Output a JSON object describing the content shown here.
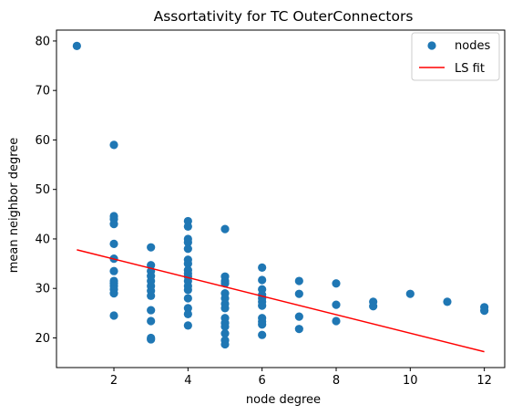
{
  "chart_data": {
    "type": "scatter",
    "title": "Assortativity for TC OuterConnectors",
    "xlabel": "node degree",
    "ylabel": "mean neighbor degree",
    "xlim": [
      0.45,
      12.55
    ],
    "ylim": [
      14.0,
      82.2
    ],
    "xticks": [
      2,
      4,
      6,
      8,
      10,
      12
    ],
    "yticks": [
      20,
      30,
      40,
      50,
      60,
      70,
      80
    ],
    "grid": false,
    "legend_position": "top-right",
    "colors": {
      "points": "#1f77b4",
      "fit": "#ff0000"
    },
    "series": [
      {
        "name": "nodes",
        "kind": "scatter",
        "points": [
          [
            1,
            79.0
          ],
          [
            2,
            59.0
          ],
          [
            2,
            44.6
          ],
          [
            2,
            44.0
          ],
          [
            2,
            43.0
          ],
          [
            2,
            39.0
          ],
          [
            2,
            36.0
          ],
          [
            2,
            33.5
          ],
          [
            2,
            31.5
          ],
          [
            2,
            31.0
          ],
          [
            2,
            30.5
          ],
          [
            2,
            29.8
          ],
          [
            2,
            29.0
          ],
          [
            2,
            24.5
          ],
          [
            3,
            38.3
          ],
          [
            3,
            34.7
          ],
          [
            3,
            33.5
          ],
          [
            3,
            32.5
          ],
          [
            3,
            31.5
          ],
          [
            3,
            30.5
          ],
          [
            3,
            29.5
          ],
          [
            3,
            28.5
          ],
          [
            3,
            25.6
          ],
          [
            3,
            23.4
          ],
          [
            3,
            20.0
          ],
          [
            3,
            19.7
          ],
          [
            4,
            43.6
          ],
          [
            4,
            42.5
          ],
          [
            4,
            40.0
          ],
          [
            4,
            39.3
          ],
          [
            4,
            38.0
          ],
          [
            4,
            35.8
          ],
          [
            4,
            35.0
          ],
          [
            4,
            33.7
          ],
          [
            4,
            33.0
          ],
          [
            4,
            32.4
          ],
          [
            4,
            31.5
          ],
          [
            4,
            30.5
          ],
          [
            4,
            29.7
          ],
          [
            4,
            28.0
          ],
          [
            4,
            26.0
          ],
          [
            4,
            24.8
          ],
          [
            4,
            22.5
          ],
          [
            5,
            42.0
          ],
          [
            5,
            32.4
          ],
          [
            5,
            31.5
          ],
          [
            5,
            31.0
          ],
          [
            5,
            29.0
          ],
          [
            5,
            28.0
          ],
          [
            5,
            26.9
          ],
          [
            5,
            26.0
          ],
          [
            5,
            24.0
          ],
          [
            5,
            23.0
          ],
          [
            5,
            22.3
          ],
          [
            5,
            20.9
          ],
          [
            5,
            19.5
          ],
          [
            5,
            18.7
          ],
          [
            6,
            34.2
          ],
          [
            6,
            31.7
          ],
          [
            6,
            29.8
          ],
          [
            6,
            28.7
          ],
          [
            6,
            28.0
          ],
          [
            6,
            27.3
          ],
          [
            6,
            26.5
          ],
          [
            6,
            24.0
          ],
          [
            6,
            23.3
          ],
          [
            6,
            22.7
          ],
          [
            6,
            20.6
          ],
          [
            7,
            31.5
          ],
          [
            7,
            28.9
          ],
          [
            7,
            24.3
          ],
          [
            7,
            21.8
          ],
          [
            8,
            31.0
          ],
          [
            8,
            26.7
          ],
          [
            8,
            23.4
          ],
          [
            9,
            27.3
          ],
          [
            9,
            26.4
          ],
          [
            10,
            28.9
          ],
          [
            11,
            27.3
          ],
          [
            12,
            26.2
          ],
          [
            12,
            25.5
          ]
        ]
      },
      {
        "name": "LS fit",
        "kind": "line",
        "points": [
          [
            1,
            37.8
          ],
          [
            12,
            17.2
          ]
        ]
      }
    ]
  }
}
